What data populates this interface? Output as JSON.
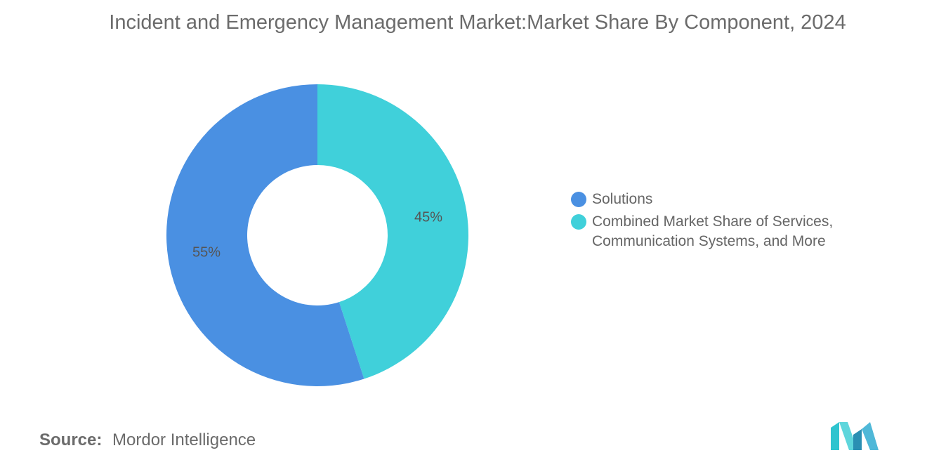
{
  "chart_data": {
    "type": "pie",
    "variant": "donut",
    "title": "Incident and Emergency Management Market:Market Share By Component, 2024",
    "categories": [
      "Combined Market Share of Services, Communication Systems, and More",
      "Solutions"
    ],
    "values": [
      45,
      55
    ],
    "labels": [
      "45%",
      "55%"
    ],
    "colors": [
      "#40d0da",
      "#4a90e2"
    ],
    "legend_position": "right",
    "legend": [
      {
        "label": "Solutions",
        "color": "#4a90e2"
      },
      {
        "label": "Combined Market Share of Services, Communication Systems, and More",
        "color": "#40d0da"
      }
    ]
  },
  "source": {
    "key": "Source:",
    "value": "Mordor Intelligence"
  },
  "logo_icon": "mordor-intelligence-logo"
}
